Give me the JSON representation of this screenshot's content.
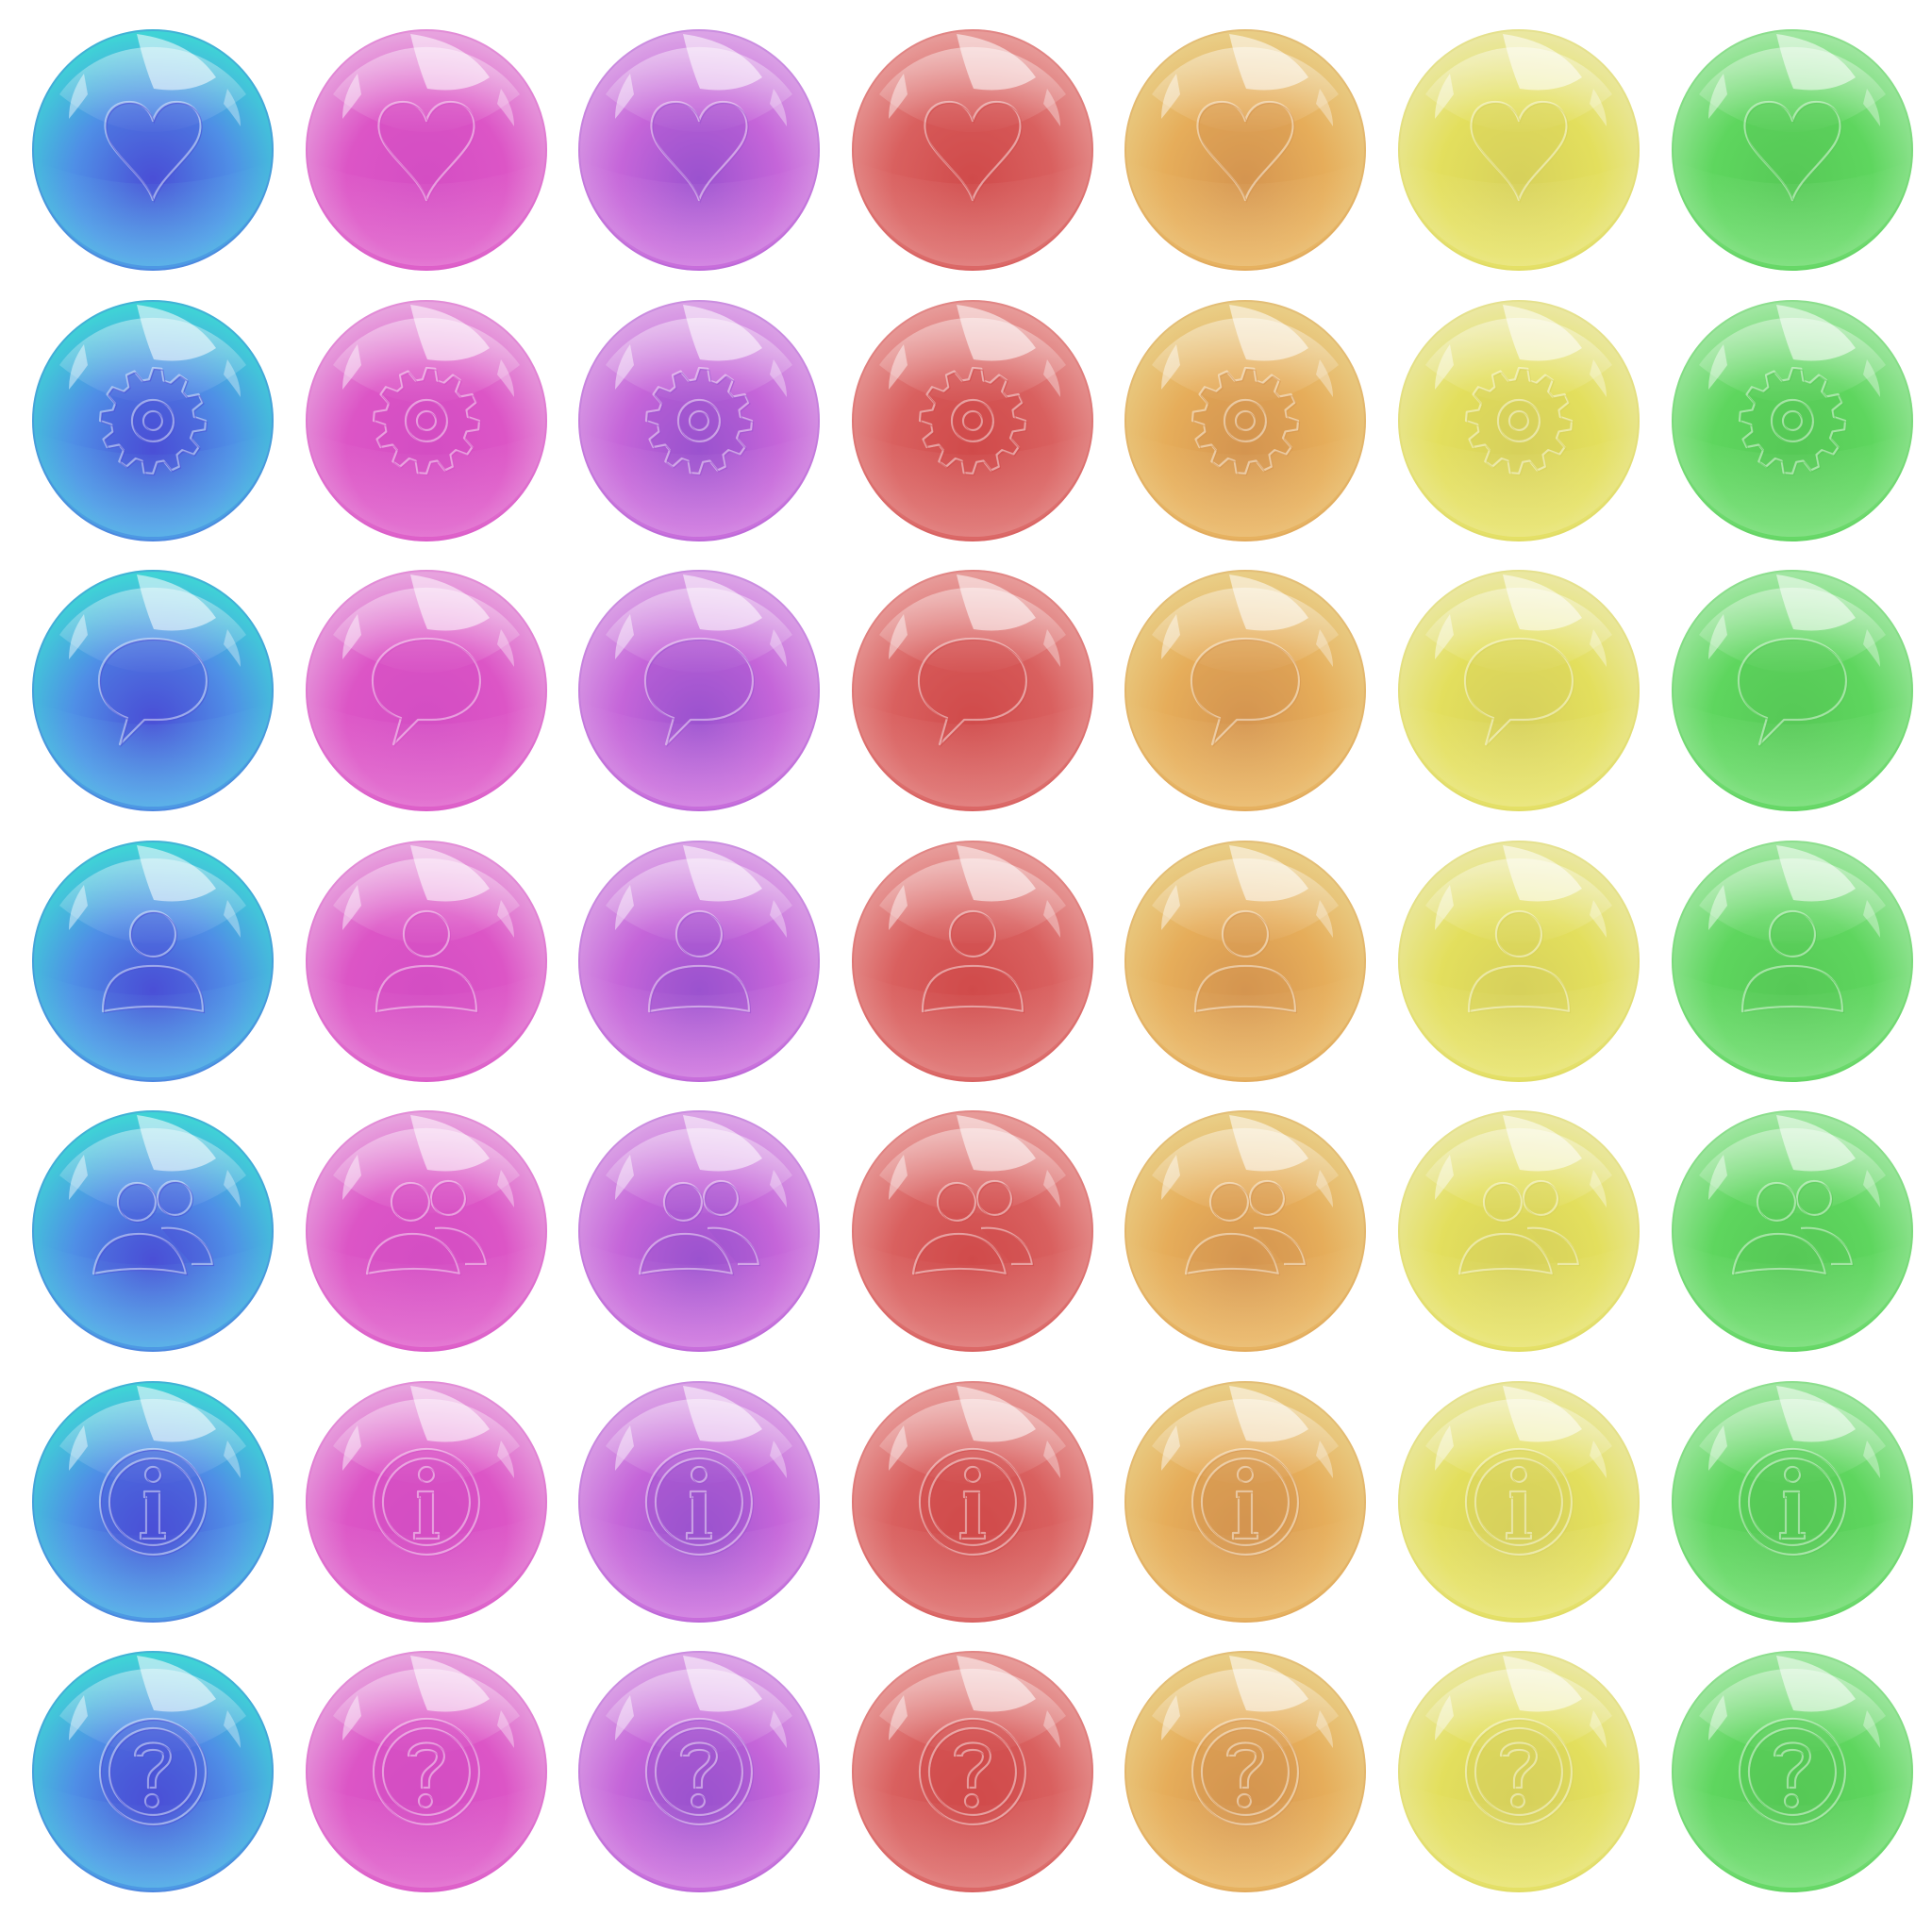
{
  "colors": [
    {
      "name": "blue",
      "base": "#4f8fe6",
      "deep": "#4a4fd6",
      "rim": "#3fd3d6",
      "highlight": "#7ff0f0"
    },
    {
      "name": "magenta",
      "base": "#dc55c6",
      "deep": "#d44ec4",
      "rim": "#e7a2de",
      "highlight": "#f3b8ea"
    },
    {
      "name": "purple",
      "base": "#c565d9",
      "deep": "#9b52cf",
      "rim": "#dba2e6",
      "highlight": "#efc8f5"
    },
    {
      "name": "red",
      "base": "#d9605f",
      "deep": "#d04b4b",
      "rim": "#e79a98",
      "highlight": "#f4c4c2"
    },
    {
      "name": "orange",
      "base": "#e6ad5a",
      "deep": "#d59550",
      "rim": "#e9cd85",
      "highlight": "#f7e1b0"
    },
    {
      "name": "yellow",
      "base": "#e3df5d",
      "deep": "#d7d15b",
      "rim": "#eae7a0",
      "highlight": "#f8f6c4"
    },
    {
      "name": "green",
      "base": "#5ed65e",
      "deep": "#57c957",
      "rim": "#9fe6a0",
      "highlight": "#c9f6c9"
    }
  ],
  "icons": [
    "heart-icon",
    "gear-icon",
    "speech-bubble-icon",
    "user-icon",
    "users-icon",
    "info-icon",
    "help-icon"
  ]
}
